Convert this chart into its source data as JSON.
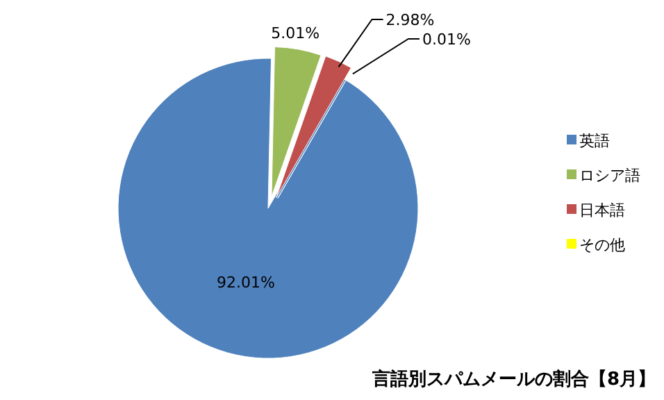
{
  "chart_data": {
    "type": "pie",
    "title": "言語別スパムメールの割合【8月】",
    "categories": [
      "英語",
      "ロシア語",
      "日本語",
      "その他"
    ],
    "values": [
      92.01,
      5.01,
      2.98,
      0.01
    ],
    "colors": [
      "#4f81bd",
      "#9bbb59",
      "#c0504d",
      "#ffff00"
    ],
    "value_labels": [
      "92.01%",
      "5.01%",
      "2.98%",
      "0.01%"
    ],
    "legend": "right"
  }
}
